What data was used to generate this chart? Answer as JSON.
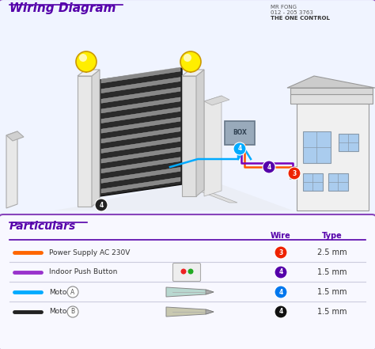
{
  "title": "Wiring Diagram",
  "title_color": "#5500aa",
  "outer_bg": "#ffffff",
  "diagram_bg": "#f0f4ff",
  "particulars_bg": "#f8f8ff",
  "particulars_title": "Particulars",
  "contact_name": "MR FONG",
  "contact_phone": "012 - 205 3763",
  "contact_company": "THE ONE CONTROL",
  "table_headers": [
    "Wire",
    "Type"
  ],
  "table_rows": [
    {
      "color_hex": "#ff6600",
      "label": "Power Supply AC 230V",
      "wire_num": "3",
      "wire_circle_color": "#ee2200",
      "type": "2.5 mm",
      "has_icon": false
    },
    {
      "color_hex": "#9933cc",
      "label": "Indoor Push Button",
      "wire_num": "4",
      "wire_circle_color": "#5500aa",
      "type": "1.5 mm",
      "has_icon": true,
      "icon_type": "button"
    },
    {
      "color_hex": "#00aaff",
      "label": "Motor",
      "motor_label": "A",
      "wire_num": "4",
      "wire_circle_color": "#0077ee",
      "type": "1.5 mm",
      "has_icon": true,
      "icon_type": "motor"
    },
    {
      "color_hex": "#222222",
      "label": "Motor",
      "motor_label": "B",
      "wire_num": "4",
      "wire_circle_color": "#111111",
      "type": "1.5 mm",
      "has_icon": true,
      "icon_type": "motor_dark"
    }
  ],
  "wire_colors": {
    "orange": "#ff5500",
    "purple": "#7700bb",
    "blue": "#00aaff",
    "black": "#222222"
  },
  "border_color": "#8844bb",
  "line_color": "#7700aa"
}
